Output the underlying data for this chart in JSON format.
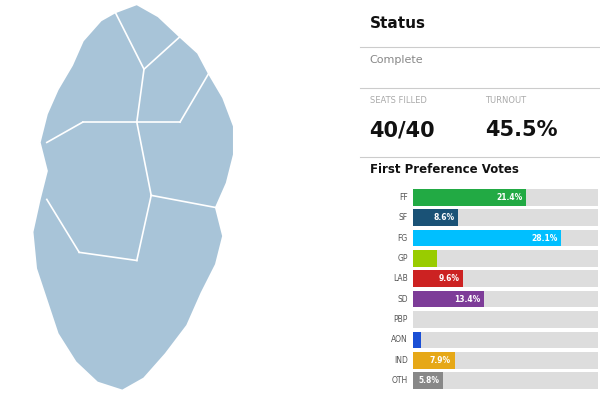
{
  "title_status": "Status",
  "status_value": "Complete",
  "seats_label": "SEATS FILLED",
  "seats_value": "40/40",
  "turnout_label": "TURNOUT",
  "turnout_value": "45.5%",
  "chart_title": "First Preference Votes",
  "parties": [
    "FF",
    "SF",
    "FG",
    "GP",
    "LAB",
    "SD",
    "PBP",
    "AON",
    "IND",
    "OTH"
  ],
  "values": [
    21.4,
    8.6,
    28.1,
    4.5,
    9.6,
    13.4,
    0.8,
    1.5,
    7.9,
    5.8
  ],
  "colors": [
    "#22aa44",
    "#1a5276",
    "#00bfff",
    "#99cc00",
    "#cc2222",
    "#7d3c98",
    "#dddddd",
    "#1a4fd6",
    "#e6a817",
    "#888888"
  ],
  "max_bar": 35,
  "bar_bg_color": "#dddddd",
  "show_label": [
    true,
    true,
    true,
    false,
    true,
    true,
    false,
    false,
    true,
    true
  ],
  "bg_color": "#ffffff",
  "map_color": "#a8c4d8",
  "map_edge_color": "#ffffff",
  "line_color": "#cccccc"
}
